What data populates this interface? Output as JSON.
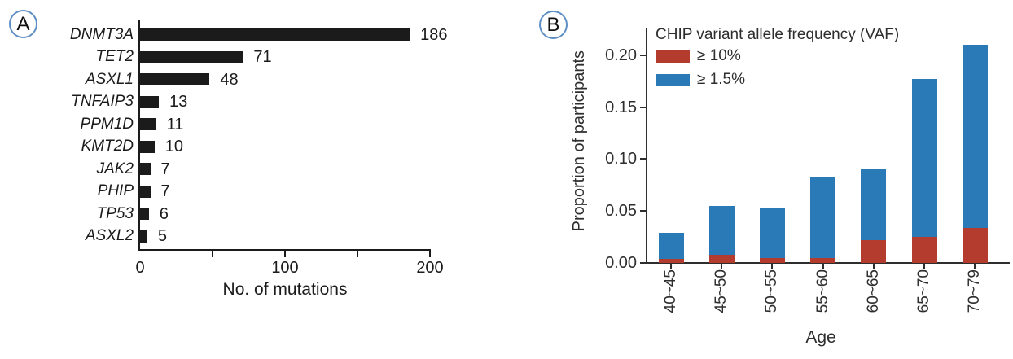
{
  "panels": {
    "a": {
      "label": "A"
    },
    "b": {
      "label": "B"
    }
  },
  "chart_data": [
    {
      "id": "mutations-by-gene",
      "type": "bar",
      "orientation": "horizontal",
      "categories": [
        "DNMT3A",
        "TET2",
        "ASXL1",
        "TNFAIP3",
        "PPM1D",
        "KMT2D",
        "JAK2",
        "PHIP",
        "TP53",
        "ASXL2"
      ],
      "values": [
        186,
        71,
        48,
        13,
        11,
        10,
        7,
        7,
        6,
        5
      ],
      "value_labels": [
        "186",
        "71",
        "48",
        "13",
        "11",
        "10",
        "7",
        "7",
        "6",
        "5"
      ],
      "xlabel": "No. of mutations",
      "xlim": [
        0,
        200
      ],
      "xticks": [
        {
          "value": 50,
          "label": ""
        },
        {
          "value": 100,
          "label": "100"
        },
        {
          "value": 150,
          "label": ""
        },
        {
          "value": 200,
          "label": "200"
        }
      ],
      "origin_tick_label": "0",
      "bar_color": "#1b1b1b",
      "grid": false
    },
    {
      "id": "chip-vaf-by-age",
      "type": "stacked-bar",
      "legend_title": "CHIP variant allele frequency (VAF)",
      "legend_position": "top-left-inside",
      "categories": [
        "40~45",
        "45~50",
        "50~55",
        "55~60",
        "60~65",
        "65~70",
        "70~79"
      ],
      "series": [
        {
          "name": "≥ 10%",
          "color": "#b43c2e",
          "values": [
            0.004,
            0.008,
            0.005,
            0.005,
            0.022,
            0.025,
            0.034
          ]
        },
        {
          "name": "≥ 1.5%",
          "color": "#2b7ab8",
          "values": [
            0.025,
            0.047,
            0.048,
            0.078,
            0.068,
            0.152,
            0.176
          ]
        }
      ],
      "totals": [
        0.029,
        0.055,
        0.053,
        0.083,
        0.09,
        0.177,
        0.21
      ],
      "xlabel": "Age",
      "ylabel": "Proportion of participants",
      "ylim": [
        0,
        0.22
      ],
      "yticks": [
        {
          "value": 0.0,
          "label": "0.00"
        },
        {
          "value": 0.05,
          "label": "0.05"
        },
        {
          "value": 0.1,
          "label": "0.10"
        },
        {
          "value": 0.15,
          "label": "0.15"
        },
        {
          "value": 0.2,
          "label": "0.20"
        }
      ],
      "grid": false
    }
  ]
}
